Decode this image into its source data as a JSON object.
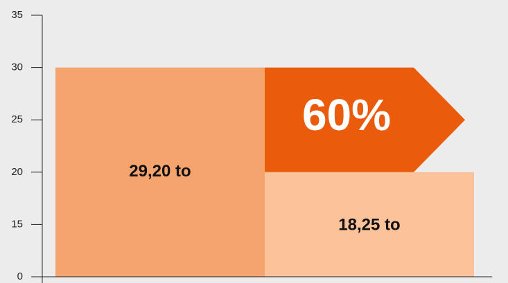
{
  "chart_data": {
    "type": "bar",
    "values": [
      30,
      20
    ],
    "colors": [
      "#f5a46e",
      "#fcc29a"
    ],
    "arrow_color": "#ea5b0c",
    "annotations": [
      "29,20 to",
      "18,25 to",
      "60%"
    ],
    "ylim": [
      0,
      35
    ],
    "yticks": [
      0,
      15,
      20,
      25,
      30,
      35
    ]
  }
}
